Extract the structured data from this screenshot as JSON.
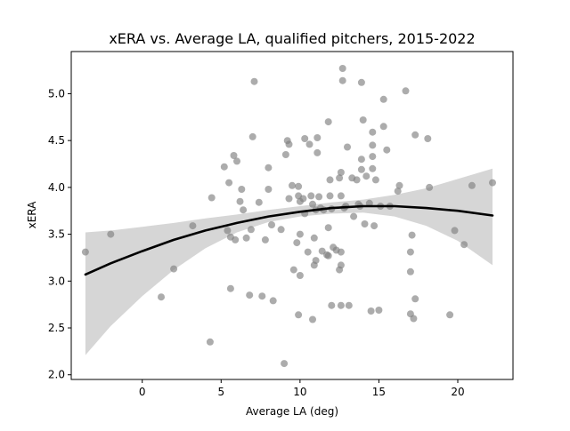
{
  "chart_data": {
    "type": "scatter",
    "title": "xERA vs. Average LA, qualified pitchers, 2015-2022",
    "xlabel": "Average LA (deg)",
    "ylabel": "xERA",
    "xlim": [
      -4.5,
      23.5
    ],
    "ylim": [
      1.95,
      5.45
    ],
    "xticks": [
      0,
      5,
      10,
      15,
      20
    ],
    "yticks": [
      2.0,
      2.5,
      3.0,
      3.5,
      4.0,
      4.5,
      5.0
    ],
    "xtick_labels": [
      "0",
      "5",
      "10",
      "15",
      "20"
    ],
    "ytick_labels": [
      "2.0",
      "2.5",
      "3.0",
      "3.5",
      "4.0",
      "4.5",
      "5.0"
    ],
    "grid": false,
    "legend": "none",
    "colors": {
      "points": "#808080",
      "fit_line": "#000000",
      "confidence_band": "#d6d6d6"
    },
    "points": [
      {
        "x": -3.6,
        "y": 3.31
      },
      {
        "x": -2.0,
        "y": 3.5
      },
      {
        "x": 1.2,
        "y": 2.83
      },
      {
        "x": 2.0,
        "y": 3.13
      },
      {
        "x": 3.2,
        "y": 3.59
      },
      {
        "x": 4.3,
        "y": 2.35
      },
      {
        "x": 4.4,
        "y": 3.89
      },
      {
        "x": 5.2,
        "y": 4.22
      },
      {
        "x": 5.4,
        "y": 3.54
      },
      {
        "x": 5.5,
        "y": 4.05
      },
      {
        "x": 5.6,
        "y": 3.47
      },
      {
        "x": 5.6,
        "y": 2.92
      },
      {
        "x": 5.8,
        "y": 4.34
      },
      {
        "x": 5.9,
        "y": 3.44
      },
      {
        "x": 6.0,
        "y": 4.28
      },
      {
        "x": 6.2,
        "y": 3.85
      },
      {
        "x": 6.3,
        "y": 3.98
      },
      {
        "x": 6.4,
        "y": 3.76
      },
      {
        "x": 6.6,
        "y": 3.46
      },
      {
        "x": 6.8,
        "y": 2.85
      },
      {
        "x": 6.9,
        "y": 3.55
      },
      {
        "x": 7.0,
        "y": 4.54
      },
      {
        "x": 7.1,
        "y": 5.13
      },
      {
        "x": 7.4,
        "y": 3.84
      },
      {
        "x": 7.6,
        "y": 2.84
      },
      {
        "x": 7.8,
        "y": 3.44
      },
      {
        "x": 8.0,
        "y": 4.21
      },
      {
        "x": 8.0,
        "y": 3.98
      },
      {
        "x": 8.2,
        "y": 3.6
      },
      {
        "x": 8.3,
        "y": 2.79
      },
      {
        "x": 8.8,
        "y": 3.55
      },
      {
        "x": 9.0,
        "y": 2.12
      },
      {
        "x": 9.1,
        "y": 4.35
      },
      {
        "x": 9.2,
        "y": 4.5
      },
      {
        "x": 9.3,
        "y": 4.46
      },
      {
        "x": 9.3,
        "y": 3.88
      },
      {
        "x": 9.5,
        "y": 4.02
      },
      {
        "x": 9.6,
        "y": 3.12
      },
      {
        "x": 9.8,
        "y": 3.41
      },
      {
        "x": 9.9,
        "y": 2.64
      },
      {
        "x": 9.9,
        "y": 3.91
      },
      {
        "x": 9.9,
        "y": 4.01
      },
      {
        "x": 10.0,
        "y": 3.85
      },
      {
        "x": 10.0,
        "y": 3.06
      },
      {
        "x": 10.0,
        "y": 3.5
      },
      {
        "x": 10.2,
        "y": 3.88
      },
      {
        "x": 10.3,
        "y": 4.52
      },
      {
        "x": 10.3,
        "y": 3.72
      },
      {
        "x": 10.5,
        "y": 3.31
      },
      {
        "x": 10.6,
        "y": 4.46
      },
      {
        "x": 10.7,
        "y": 3.91
      },
      {
        "x": 10.8,
        "y": 3.82
      },
      {
        "x": 10.8,
        "y": 2.59
      },
      {
        "x": 10.9,
        "y": 3.46
      },
      {
        "x": 10.9,
        "y": 3.17
      },
      {
        "x": 11.0,
        "y": 3.22
      },
      {
        "x": 11.0,
        "y": 3.76
      },
      {
        "x": 11.1,
        "y": 4.53
      },
      {
        "x": 11.1,
        "y": 4.37
      },
      {
        "x": 11.2,
        "y": 3.9
      },
      {
        "x": 11.3,
        "y": 3.78
      },
      {
        "x": 11.4,
        "y": 3.32
      },
      {
        "x": 11.5,
        "y": 3.76
      },
      {
        "x": 11.7,
        "y": 3.28
      },
      {
        "x": 11.8,
        "y": 3.57
      },
      {
        "x": 11.8,
        "y": 3.27
      },
      {
        "x": 11.8,
        "y": 4.7
      },
      {
        "x": 11.9,
        "y": 4.08
      },
      {
        "x": 11.9,
        "y": 3.91
      },
      {
        "x": 12.0,
        "y": 3.77
      },
      {
        "x": 12.0,
        "y": 2.74
      },
      {
        "x": 12.1,
        "y": 3.36
      },
      {
        "x": 12.3,
        "y": 3.33
      },
      {
        "x": 12.5,
        "y": 4.1
      },
      {
        "x": 12.5,
        "y": 3.12
      },
      {
        "x": 12.6,
        "y": 4.16
      },
      {
        "x": 12.6,
        "y": 3.91
      },
      {
        "x": 12.6,
        "y": 3.31
      },
      {
        "x": 12.6,
        "y": 3.17
      },
      {
        "x": 12.6,
        "y": 2.74
      },
      {
        "x": 12.7,
        "y": 5.27
      },
      {
        "x": 12.7,
        "y": 5.14
      },
      {
        "x": 12.8,
        "y": 3.78
      },
      {
        "x": 12.9,
        "y": 3.8
      },
      {
        "x": 13.0,
        "y": 4.43
      },
      {
        "x": 13.1,
        "y": 2.74
      },
      {
        "x": 13.3,
        "y": 4.1
      },
      {
        "x": 13.4,
        "y": 3.69
      },
      {
        "x": 13.6,
        "y": 4.08
      },
      {
        "x": 13.7,
        "y": 3.82
      },
      {
        "x": 13.8,
        "y": 3.8
      },
      {
        "x": 13.9,
        "y": 4.3
      },
      {
        "x": 13.9,
        "y": 4.19
      },
      {
        "x": 13.9,
        "y": 5.12
      },
      {
        "x": 14.0,
        "y": 4.72
      },
      {
        "x": 14.1,
        "y": 3.61
      },
      {
        "x": 14.2,
        "y": 4.12
      },
      {
        "x": 14.4,
        "y": 3.83
      },
      {
        "x": 14.5,
        "y": 2.68
      },
      {
        "x": 14.6,
        "y": 4.59
      },
      {
        "x": 14.6,
        "y": 4.45
      },
      {
        "x": 14.6,
        "y": 4.33
      },
      {
        "x": 14.6,
        "y": 4.2
      },
      {
        "x": 14.7,
        "y": 3.59
      },
      {
        "x": 14.8,
        "y": 4.08
      },
      {
        "x": 15.0,
        "y": 2.69
      },
      {
        "x": 15.1,
        "y": 3.8
      },
      {
        "x": 15.3,
        "y": 4.94
      },
      {
        "x": 15.3,
        "y": 4.65
      },
      {
        "x": 15.5,
        "y": 4.4
      },
      {
        "x": 15.7,
        "y": 3.8
      },
      {
        "x": 16.2,
        "y": 3.96
      },
      {
        "x": 16.3,
        "y": 4.02
      },
      {
        "x": 16.7,
        "y": 5.03
      },
      {
        "x": 17.0,
        "y": 3.31
      },
      {
        "x": 17.0,
        "y": 3.1
      },
      {
        "x": 17.0,
        "y": 2.65
      },
      {
        "x": 17.1,
        "y": 3.49
      },
      {
        "x": 17.2,
        "y": 2.6
      },
      {
        "x": 17.3,
        "y": 4.56
      },
      {
        "x": 17.3,
        "y": 2.81
      },
      {
        "x": 18.1,
        "y": 4.52
      },
      {
        "x": 18.2,
        "y": 4.0
      },
      {
        "x": 19.5,
        "y": 2.64
      },
      {
        "x": 19.8,
        "y": 3.54
      },
      {
        "x": 20.4,
        "y": 3.39
      },
      {
        "x": 20.9,
        "y": 4.02
      },
      {
        "x": 22.2,
        "y": 4.05
      }
    ],
    "fit_line": {
      "x": [
        -3.6,
        -2,
        0,
        2,
        4,
        6,
        8,
        10,
        12,
        14,
        16,
        18,
        20,
        22.2
      ],
      "y": [
        3.07,
        3.19,
        3.32,
        3.44,
        3.54,
        3.62,
        3.69,
        3.74,
        3.78,
        3.8,
        3.8,
        3.78,
        3.75,
        3.7
      ]
    },
    "confidence_band": {
      "x": [
        -3.6,
        -2,
        0,
        2,
        4,
        6,
        8,
        10,
        12,
        14,
        16,
        18,
        20,
        22.2
      ],
      "upper": [
        3.52,
        3.54,
        3.58,
        3.62,
        3.67,
        3.71,
        3.76,
        3.8,
        3.84,
        3.87,
        3.92,
        3.99,
        4.09,
        4.2
      ],
      "lower": [
        2.21,
        2.52,
        2.84,
        3.12,
        3.35,
        3.52,
        3.63,
        3.69,
        3.72,
        3.73,
        3.69,
        3.59,
        3.43,
        3.17
      ]
    }
  }
}
